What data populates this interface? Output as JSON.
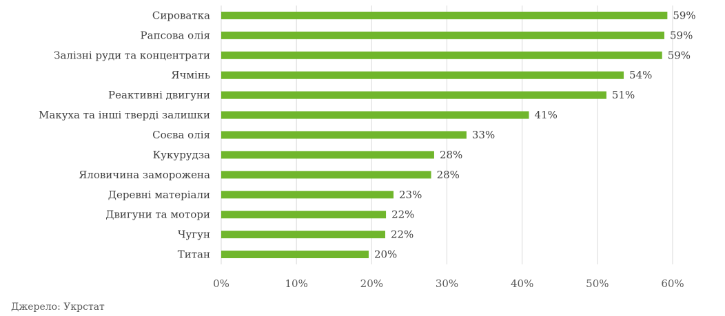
{
  "chart_data": {
    "type": "bar",
    "orientation": "horizontal",
    "categories": [
      "Сироватка",
      "Рапсова олія",
      "Залізні руди та концентрати",
      "Ячмінь",
      "Реактивні двигуни",
      "Макуха та інші тверді залишки",
      "Соєва олія",
      "Кукурудза",
      "Яловичина заморожена",
      "Деревні матеріали",
      "Двигуни та мотори",
      "Чугун",
      "Титан"
    ],
    "values": [
      59.3,
      58.9,
      58.6,
      53.5,
      51.2,
      40.9,
      32.6,
      28.3,
      27.9,
      22.9,
      21.9,
      21.8,
      19.6
    ],
    "value_labels": [
      "59%",
      "59%",
      "59%",
      "54%",
      "51%",
      "41%",
      "33%",
      "28%",
      "28%",
      "23%",
      "22%",
      "22%",
      "20%"
    ],
    "xlim": [
      0,
      60
    ],
    "xticks": [
      0,
      10,
      20,
      30,
      40,
      50,
      60
    ],
    "xtick_labels": [
      "0%",
      "10%",
      "20%",
      "30%",
      "40%",
      "50%",
      "60%"
    ],
    "grid": "vertical",
    "legend": "none",
    "bar_color": "#70b62c",
    "gridline_color": "#d9d9d9"
  },
  "source_note": "Джерело: Укрстат"
}
